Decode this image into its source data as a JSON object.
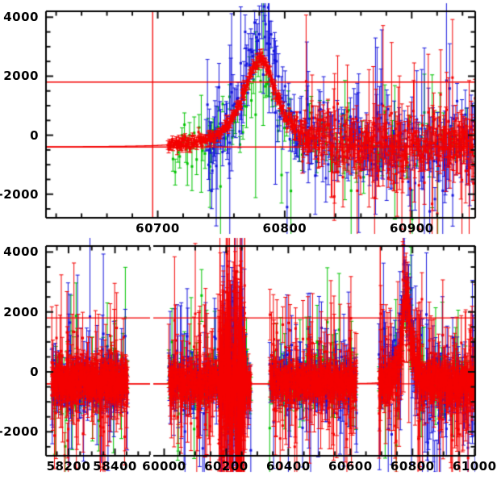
{
  "chart_data": {
    "type": "scatter",
    "title": "",
    "xlabel": "",
    "ylabel": "",
    "description": "Two-panel light-curve style scatter plot with error bars in three colors (red, green, blue). Top panel: zoom on event region 60612-60950 showing a peaked model curve (baseline -400, peak ~2550 at t0 60780). Bottom panel: full time span with broken x-axis (58103-58551 and 59965-61002). Red horizontal reference lines at 1800 and -400, red vertical reference line at 60696.",
    "grid": false,
    "legend": null,
    "palette": {
      "background": "#ffffff",
      "axis": "#000000",
      "tick": "#111111",
      "red": "#f40000",
      "green": "#00c400",
      "blue": "#1515dd",
      "reference": "#f40000",
      "model": "#f40000"
    },
    "model": {
      "baseline": -400,
      "amplitude": 2950,
      "t0": 60780.5,
      "width": 20,
      "power": 1.4
    },
    "panels": [
      {
        "name": "zoom-panel",
        "box": {
          "left": 57,
          "top": 14,
          "right": 589,
          "bottom": 270
        },
        "y_range": [
          -2800,
          4200
        ],
        "y_major_step": 2000,
        "y_minor_step": 500,
        "y_labels": [
          {
            "value": 4000,
            "text": "4000"
          },
          {
            "value": 2000,
            "text": "2000"
          },
          {
            "value": 0,
            "text": "0"
          },
          {
            "value": -2000,
            "text": "-2000"
          }
        ],
        "x_axes": [
          {
            "left": 57,
            "right": 589,
            "range": [
              60612,
              60950
            ],
            "major_step": 100,
            "minor_step": 20,
            "labels": [
              {
                "value": 60700,
                "text": "60700"
              },
              {
                "value": 60800,
                "text": "60800"
              },
              {
                "value": 60900,
                "text": "60900"
              }
            ]
          }
        ],
        "h_lines": [
          1800,
          -400
        ],
        "v_lines": [
          60696
        ],
        "show_model": true
      },
      {
        "name": "full-panel",
        "box": {
          "left": 57,
          "top": 305,
          "right": 589,
          "bottom": 565
        },
        "y_range": [
          -2800,
          4200
        ],
        "y_major_step": 2000,
        "y_minor_step": 500,
        "y_labels": [
          {
            "value": 4000,
            "text": "4000"
          },
          {
            "value": 2000,
            "text": "2000"
          },
          {
            "value": 0,
            "text": "0"
          },
          {
            "value": -2000,
            "text": "-2000"
          }
        ],
        "x_axes": [
          {
            "left": 57,
            "right": 186,
            "range": [
              58103,
              58551
            ],
            "major_step": 200,
            "minor_step": 50,
            "labels": [
              {
                "value": 58200,
                "text": "58200"
              },
              {
                "value": 58400,
                "text": "58400"
              }
            ]
          },
          {
            "left": 190,
            "right": 589,
            "range": [
              59965,
              61002
            ],
            "major_step": 200,
            "minor_step": 50,
            "labels": [
              {
                "value": 60000,
                "text": "60000"
              },
              {
                "value": 60200,
                "text": "60200"
              },
              {
                "value": 60400,
                "text": "60400"
              },
              {
                "value": 60600,
                "text": "60600"
              },
              {
                "value": 60800,
                "text": "60800"
              },
              {
                "value": 61000,
                "text": "61000"
              }
            ]
          }
        ],
        "h_lines": [
          1800,
          -400
        ],
        "v_lines": [
          60696
        ],
        "show_model": true
      }
    ],
    "clusters": [
      {
        "p": 0,
        "a": 0,
        "c": "green",
        "t0": 60712,
        "t1": 60950,
        "st": 1.7,
        "ms": 0.85,
        "sg": 420,
        "e0": 230,
        "e1": 220,
        "of": 0.13,
        "os": 1150,
        "oe0": 600,
        "oe1": 950,
        "sd": 11
      },
      {
        "p": 1,
        "a": 0,
        "c": "green",
        "t0": 58128,
        "t1": 58455,
        "st": 2.6,
        "mean": -350,
        "sg": 300,
        "e0": 260,
        "e1": 260,
        "of": 0.2,
        "os": 950,
        "oe0": 600,
        "oe1": 900,
        "sd": 41
      },
      {
        "p": 1,
        "a": 1,
        "c": "green",
        "t0": 60015,
        "t1": 60280,
        "st": 2.6,
        "mean": -350,
        "sg": 300,
        "e0": 260,
        "e1": 260,
        "of": 0.2,
        "os": 950,
        "oe0": 600,
        "oe1": 900,
        "sd": 51
      },
      {
        "p": 1,
        "a": 1,
        "c": "green",
        "t0": 60340,
        "t1": 60620,
        "st": 2.6,
        "mean": -350,
        "sg": 300,
        "e0": 260,
        "e1": 260,
        "of": 0.2,
        "os": 950,
        "oe0": 600,
        "oe1": 900,
        "sd": 61
      },
      {
        "p": 1,
        "a": 1,
        "c": "green",
        "t0": 60692,
        "t1": 61003,
        "st": 2.4,
        "ms": 0.85,
        "sg": 330,
        "e0": 280,
        "e1": 280,
        "of": 0.2,
        "os": 1000,
        "oe0": 650,
        "oe1": 950,
        "sd": 71
      },
      {
        "p": 0,
        "a": 0,
        "c": "blue",
        "t0": 60738,
        "t1": 60950,
        "st": 0.85,
        "ms": 1.28,
        "sg": 620,
        "e0": 380,
        "e1": 320,
        "of": 0.16,
        "os": 1300,
        "oe0": 800,
        "oe1": 1100,
        "sd": 22
      },
      {
        "p": 1,
        "a": 0,
        "c": "blue",
        "t0": 58128,
        "t1": 58455,
        "st": 2.1,
        "mean": -350,
        "sg": 300,
        "e0": 280,
        "e1": 280,
        "of": 0.2,
        "os": 1000,
        "oe0": 650,
        "oe1": 950,
        "sd": 42
      },
      {
        "p": 1,
        "a": 1,
        "c": "blue",
        "t0": 60015,
        "t1": 60280,
        "st": 2.1,
        "mean": -350,
        "sg": 300,
        "e0": 280,
        "e1": 280,
        "of": 0.2,
        "os": 1000,
        "oe0": 650,
        "oe1": 950,
        "sd": 52
      },
      {
        "p": 1,
        "a": 1,
        "c": "blue",
        "t0": 60185,
        "t1": 60258,
        "st": 1.4,
        "mean": -300,
        "sg": 1300,
        "e0": 700,
        "e1": 800,
        "of": 0.5,
        "os": 1700,
        "oe0": 900,
        "oe1": 1400,
        "sd": 55
      },
      {
        "p": 1,
        "a": 1,
        "c": "blue",
        "t0": 60340,
        "t1": 60620,
        "st": 2.1,
        "mean": -350,
        "sg": 300,
        "e0": 280,
        "e1": 280,
        "of": 0.2,
        "os": 1000,
        "oe0": 650,
        "oe1": 950,
        "sd": 62
      },
      {
        "p": 1,
        "a": 1,
        "c": "blue",
        "t0": 60692,
        "t1": 61003,
        "st": 1.9,
        "ms": 1.28,
        "sg": 650,
        "e0": 420,
        "e1": 350,
        "of": 0.2,
        "os": 1300,
        "oe0": 800,
        "oe1": 1100,
        "sd": 72
      },
      {
        "p": 0,
        "a": 0,
        "c": "red",
        "t0": 60708,
        "t1": 60950,
        "st": 0.45,
        "ms": 1.0,
        "sg": 110,
        "sgL": 450,
        "rT": 60798,
        "rW": 30,
        "e0": 85,
        "e1": 60,
        "of": 0.17,
        "os": 1400,
        "oe0": 600,
        "oe1": 1200,
        "ol": 1,
        "sd": 33
      },
      {
        "p": 1,
        "a": 0,
        "c": "red",
        "t0": 58128,
        "t1": 58455,
        "st": 0.7,
        "mean": -350,
        "sg": 260,
        "e0": 190,
        "e1": 170,
        "of": 0.22,
        "os": 880,
        "oe0": 500,
        "oe1": 800,
        "sd": 43
      },
      {
        "p": 1,
        "a": 1,
        "c": "red",
        "t0": 60015,
        "t1": 60280,
        "st": 0.7,
        "mean": -350,
        "sg": 260,
        "e0": 190,
        "e1": 170,
        "of": 0.22,
        "os": 880,
        "oe0": 500,
        "oe1": 800,
        "sd": 53
      },
      {
        "p": 1,
        "a": 1,
        "c": "red",
        "t0": 60178,
        "t1": 60262,
        "st": 0.55,
        "mean": -200,
        "sg": 1500,
        "e0": 700,
        "e1": 900,
        "of": 0.45,
        "os": 1800,
        "oe0": 900,
        "oe1": 1500,
        "sd": 54
      },
      {
        "p": 1,
        "a": 1,
        "c": "red",
        "t0": 60340,
        "t1": 60620,
        "st": 0.7,
        "mean": -350,
        "sg": 260,
        "e0": 190,
        "e1": 170,
        "of": 0.22,
        "os": 880,
        "oe0": 500,
        "oe1": 800,
        "sd": 63
      },
      {
        "p": 1,
        "a": 1,
        "c": "red",
        "t0": 60692,
        "t1": 61003,
        "st": 0.62,
        "ms": 1.0,
        "sg": 270,
        "e0": 200,
        "e1": 180,
        "of": 0.25,
        "os": 950,
        "oe0": 550,
        "oe1": 900,
        "sd": 73
      }
    ]
  }
}
